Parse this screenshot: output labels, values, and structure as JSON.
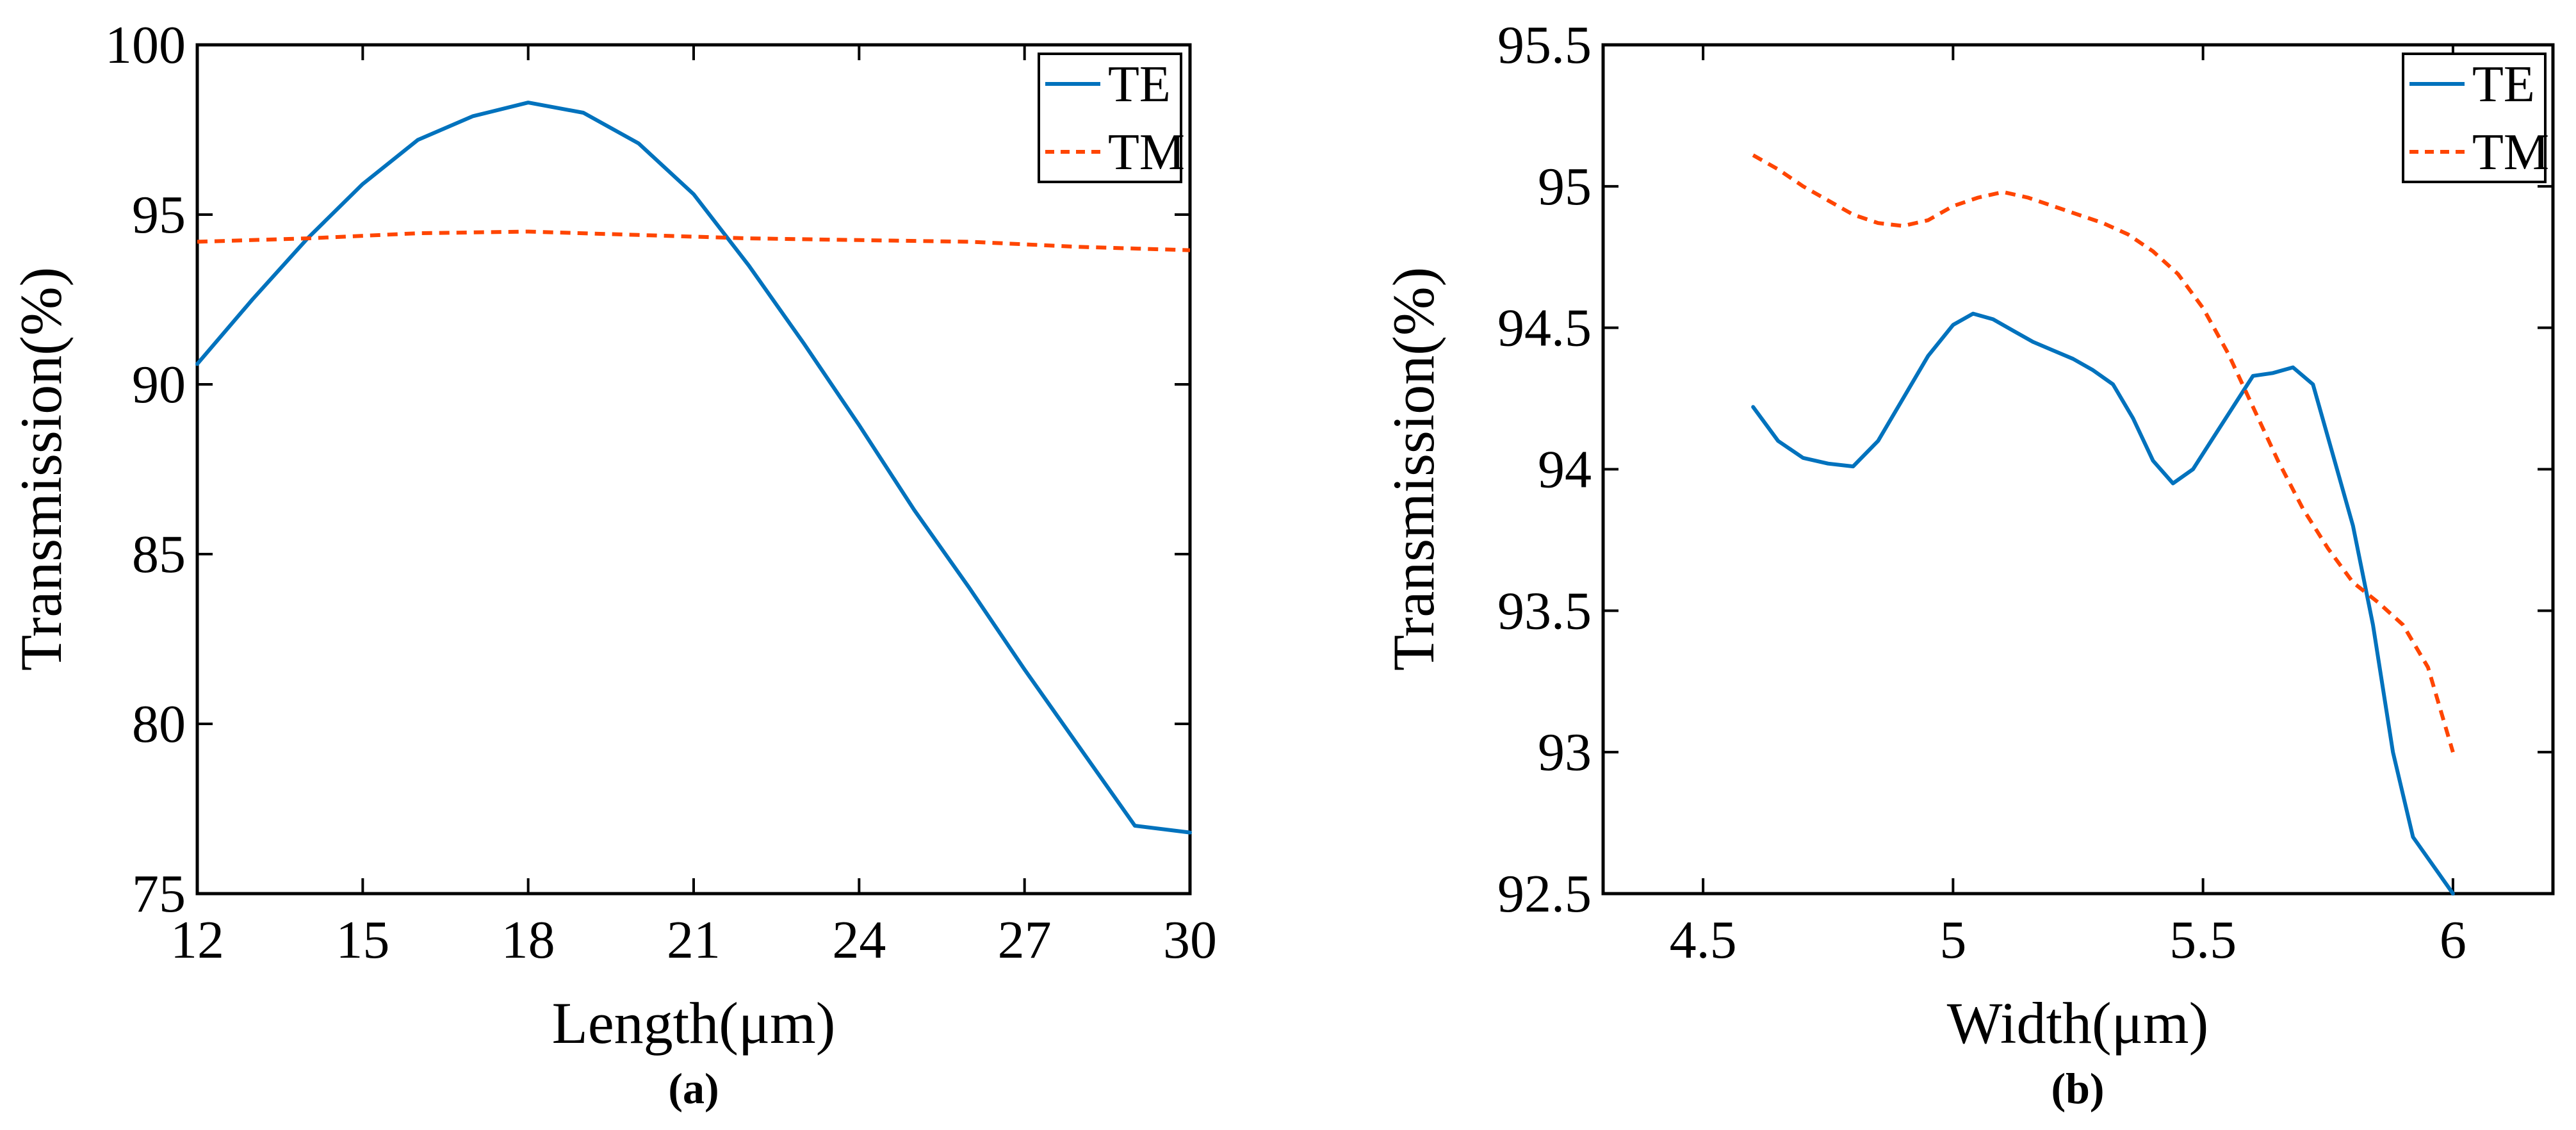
{
  "chart_data": [
    {
      "type": "line",
      "panel_label": "a",
      "title": "",
      "xlabel": "Length(μm)",
      "ylabel": "Transmission(%)",
      "xlim": [
        12,
        30
      ],
      "ylim": [
        75,
        100
      ],
      "xticks": [
        12,
        15,
        18,
        21,
        24,
        27,
        30
      ],
      "yticks": [
        75,
        80,
        85,
        90,
        95,
        100
      ],
      "xtick_labels": [
        "12",
        "15",
        "18",
        "21",
        "24",
        "27",
        "30"
      ],
      "ytick_labels": [
        "75",
        "80",
        "85",
        "90",
        "95",
        "100"
      ],
      "grid": false,
      "legend_position": "top-right",
      "series": [
        {
          "name": "TE",
          "color": "#0072bd",
          "dash": "solid",
          "x": [
            12,
            13,
            14,
            15,
            16,
            17,
            18,
            19,
            20,
            21,
            22,
            23,
            24,
            25,
            26,
            27,
            28,
            29,
            30
          ],
          "y": [
            90.6,
            92.5,
            94.3,
            95.9,
            97.2,
            97.9,
            98.3,
            98.0,
            97.1,
            95.6,
            93.5,
            91.2,
            88.8,
            86.3,
            84.0,
            81.6,
            79.3,
            77.0,
            76.8
          ]
        },
        {
          "name": "TM",
          "color": "#ff4500",
          "dash": "dashed",
          "x": [
            12,
            14,
            16,
            18,
            20,
            22,
            24,
            26,
            28,
            30
          ],
          "y": [
            94.2,
            94.3,
            94.45,
            94.5,
            94.4,
            94.3,
            94.25,
            94.2,
            94.05,
            93.95
          ]
        }
      ]
    },
    {
      "type": "line",
      "panel_label": "b",
      "title": "",
      "xlabel": "Width(μm)",
      "ylabel": "Transmission(%)",
      "xlim": [
        4.3,
        6.2
      ],
      "ylim": [
        92.5,
        95.5
      ],
      "xticks": [
        4.5,
        5,
        5.5,
        6
      ],
      "yticks": [
        92.5,
        93,
        93.5,
        94,
        94.5,
        95,
        95.5
      ],
      "xtick_labels": [
        "4.5",
        "5",
        "5.5",
        "6"
      ],
      "ytick_labels": [
        "92.5",
        "93",
        "93.5",
        "94",
        "94.5",
        "95",
        "95.5"
      ],
      "grid": false,
      "legend_position": "top-right",
      "series": [
        {
          "name": "TE",
          "color": "#0072bd",
          "dash": "solid",
          "x": [
            4.6,
            4.65,
            4.7,
            4.75,
            4.8,
            4.85,
            4.9,
            4.95,
            5.0,
            5.04,
            5.08,
            5.12,
            5.16,
            5.2,
            5.24,
            5.28,
            5.32,
            5.36,
            5.4,
            5.44,
            5.48,
            5.52,
            5.56,
            5.6,
            5.64,
            5.68,
            5.72,
            5.76,
            5.8,
            5.84,
            5.88,
            5.92,
            5.96,
            6.0
          ],
          "y": [
            94.22,
            94.1,
            94.04,
            94.02,
            94.01,
            94.1,
            94.25,
            94.4,
            94.51,
            94.55,
            94.53,
            94.49,
            94.45,
            94.42,
            94.39,
            94.35,
            94.3,
            94.18,
            94.03,
            93.95,
            94.0,
            94.11,
            94.22,
            94.33,
            94.34,
            94.36,
            94.3,
            94.05,
            93.8,
            93.45,
            93.0,
            92.7,
            92.6,
            92.5
          ]
        },
        {
          "name": "TM",
          "color": "#ff4500",
          "dash": "dashed",
          "x": [
            4.6,
            4.65,
            4.7,
            4.75,
            4.8,
            4.85,
            4.9,
            4.95,
            5.0,
            5.05,
            5.1,
            5.15,
            5.2,
            5.25,
            5.3,
            5.35,
            5.4,
            5.45,
            5.5,
            5.55,
            5.6,
            5.65,
            5.7,
            5.75,
            5.8,
            5.85,
            5.9,
            5.95,
            6.0
          ],
          "y": [
            95.11,
            95.06,
            95.0,
            94.95,
            94.9,
            94.87,
            94.86,
            94.88,
            94.93,
            94.96,
            94.98,
            94.96,
            94.93,
            94.9,
            94.87,
            94.83,
            94.77,
            94.69,
            94.57,
            94.41,
            94.22,
            94.03,
            93.86,
            93.72,
            93.6,
            93.53,
            93.45,
            93.3,
            93.0
          ]
        }
      ]
    }
  ],
  "captions": [
    "(a)",
    "(b)"
  ]
}
